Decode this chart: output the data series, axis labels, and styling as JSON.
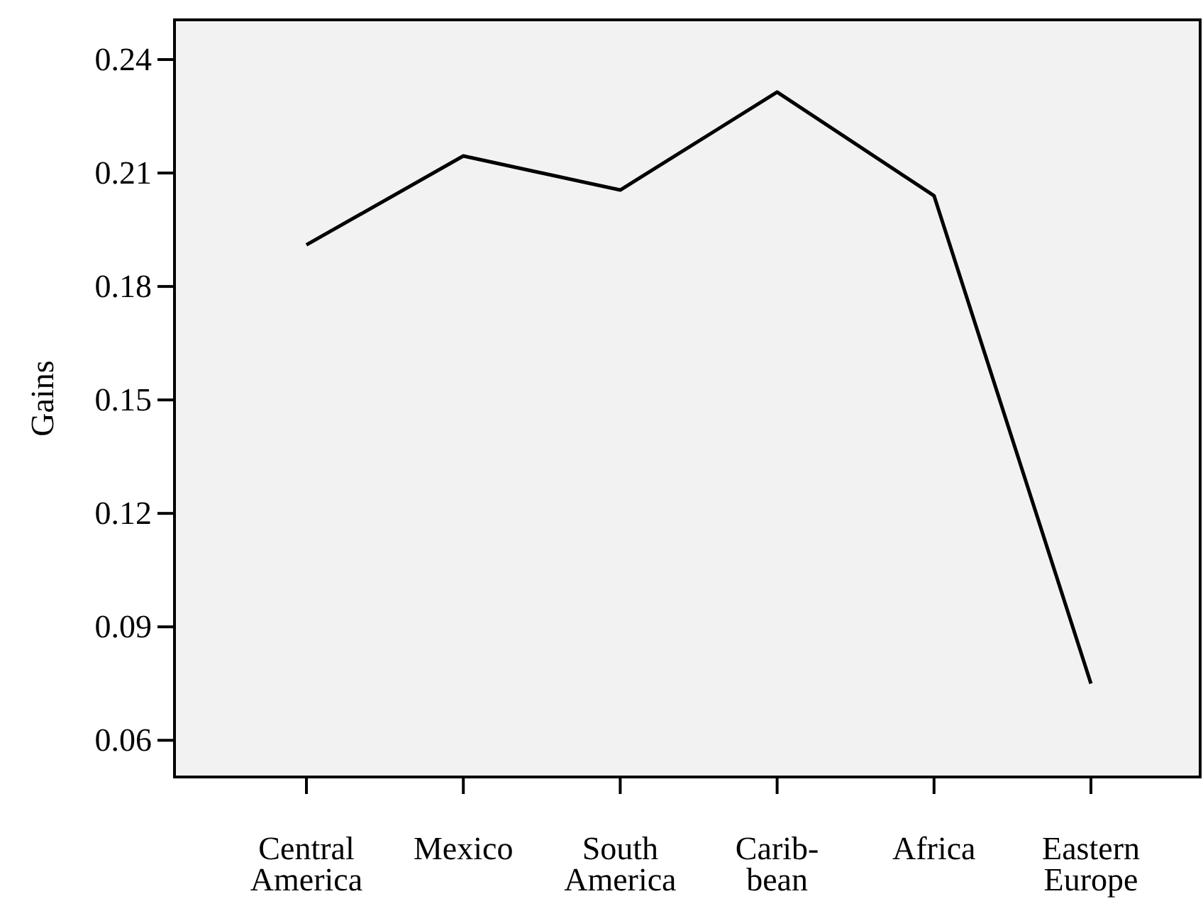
{
  "chart_data": {
    "type": "line",
    "ylabel": "Gains",
    "categories": [
      "Central\nAmerica",
      "Mexico",
      "South\nAmerica",
      "Carib-\nbean",
      "Africa",
      "Eastern\nEurope"
    ],
    "series": [
      {
        "color": "#000000",
        "values": [
          0.191,
          0.2145,
          0.2055,
          0.2314,
          0.204,
          0.075
        ]
      }
    ],
    "ylim": [
      0.0503,
      0.2505
    ],
    "yticks": [
      0.06,
      0.09,
      0.12,
      0.15,
      0.18,
      0.21,
      0.24
    ],
    "line_style": "solid"
  }
}
